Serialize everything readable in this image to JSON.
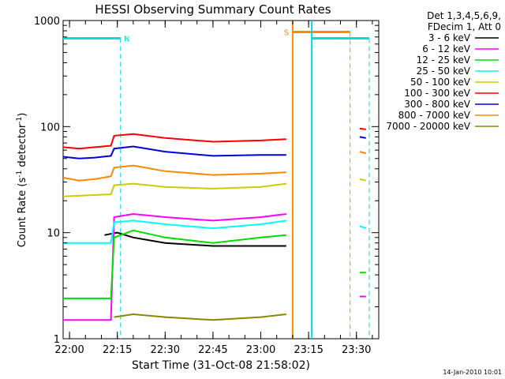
{
  "chart_data": {
    "type": "line",
    "title": "HESSI Observing Summary Count Rates",
    "xlabel": "Start Time (31-Oct-08 21:58:02)",
    "ylabel": "Count Rate (s",
    "ylabel_sup": "-1",
    "ylabel_rest": " detector",
    "ylabel_sup2": "-1",
    "ylabel_end": ")",
    "footer": "14-Jan-2010 10:01",
    "yscale": "log",
    "ylim": [
      1,
      1000
    ],
    "xlim": [
      "21:58",
      "23:37"
    ],
    "xticks": [
      "22:00",
      "22:15",
      "22:30",
      "22:45",
      "23:00",
      "23:15",
      "23:30"
    ],
    "yticks": [
      "1",
      "10",
      "100",
      "1000"
    ],
    "legend": {
      "placement": "right",
      "header": [
        "Det 1,3,4,5,6,9,",
        "FDecim 1, Att 0"
      ]
    },
    "series": [
      {
        "name": "3 - 6 keV",
        "color": "#000000",
        "points": [
          [
            "22:11",
            9.5
          ],
          [
            "22:15",
            10
          ],
          [
            "22:20",
            9
          ],
          [
            "22:30",
            8
          ],
          [
            "22:45",
            7.5
          ],
          [
            "23:00",
            7.5
          ],
          [
            "23:08",
            7.5
          ],
          [
            "23:31",
            null
          ],
          [
            "23:33",
            null
          ]
        ]
      },
      {
        "name": "6 - 12 keV",
        "color": "#ff00ff",
        "points": [
          [
            "21:58",
            1.5
          ],
          [
            "22:13",
            1.5
          ],
          [
            "22:14",
            14
          ],
          [
            "22:20",
            15
          ],
          [
            "22:30",
            14
          ],
          [
            "22:45",
            13
          ],
          [
            "23:00",
            14
          ],
          [
            "23:08",
            15
          ],
          [
            "23:31",
            2.5
          ],
          [
            "23:33",
            2.5
          ]
        ]
      },
      {
        "name": "12 - 25 keV",
        "color": "#00dd00",
        "points": [
          [
            "21:58",
            2.4
          ],
          [
            "22:13",
            2.4
          ],
          [
            "22:14",
            9
          ],
          [
            "22:20",
            10.5
          ],
          [
            "22:30",
            9
          ],
          [
            "22:45",
            8
          ],
          [
            "23:00",
            9
          ],
          [
            "23:08",
            9.5
          ],
          [
            "23:31",
            4.2
          ],
          [
            "23:33",
            4.2
          ]
        ]
      },
      {
        "name": "25 - 50 keV",
        "color": "#00ffff",
        "points": [
          [
            "21:58",
            8
          ],
          [
            "22:13",
            8
          ],
          [
            "22:14",
            12.5
          ],
          [
            "22:20",
            13
          ],
          [
            "22:30",
            12
          ],
          [
            "22:45",
            11
          ],
          [
            "23:00",
            12
          ],
          [
            "23:08",
            13
          ],
          [
            "23:31",
            11.5
          ],
          [
            "23:33",
            11
          ]
        ]
      },
      {
        "name": "50 - 100 keV",
        "color": "#cccc00",
        "points": [
          [
            "21:58",
            22
          ],
          [
            "22:13",
            23
          ],
          [
            "22:14",
            28
          ],
          [
            "22:20",
            29
          ],
          [
            "22:30",
            27
          ],
          [
            "22:45",
            26
          ],
          [
            "23:00",
            27
          ],
          [
            "23:08",
            29
          ],
          [
            "23:31",
            32
          ],
          [
            "23:33",
            31
          ]
        ]
      },
      {
        "name": "100 - 300 keV",
        "color": "#ff0000",
        "points": [
          [
            "21:58",
            64
          ],
          [
            "22:03",
            62
          ],
          [
            "22:08",
            64
          ],
          [
            "22:13",
            66
          ],
          [
            "22:14",
            82
          ],
          [
            "22:20",
            85
          ],
          [
            "22:30",
            78
          ],
          [
            "22:45",
            72
          ],
          [
            "23:00",
            74
          ],
          [
            "23:08",
            76
          ],
          [
            "23:31",
            96
          ],
          [
            "23:33",
            94
          ]
        ]
      },
      {
        "name": "300 - 800 keV",
        "color": "#0000dd",
        "points": [
          [
            "21:58",
            52
          ],
          [
            "22:03",
            50
          ],
          [
            "22:08",
            51
          ],
          [
            "22:13",
            53
          ],
          [
            "22:14",
            62
          ],
          [
            "22:20",
            65
          ],
          [
            "22:30",
            58
          ],
          [
            "22:45",
            53
          ],
          [
            "23:00",
            54
          ],
          [
            "23:08",
            54
          ],
          [
            "23:31",
            80
          ],
          [
            "23:33",
            78
          ]
        ]
      },
      {
        "name": "800 - 7000 keV",
        "color": "#ff8800",
        "points": [
          [
            "21:58",
            33
          ],
          [
            "22:03",
            31
          ],
          [
            "22:08",
            32
          ],
          [
            "22:13",
            34
          ],
          [
            "22:14",
            41
          ],
          [
            "22:20",
            43
          ],
          [
            "22:30",
            38
          ],
          [
            "22:45",
            35
          ],
          [
            "23:00",
            36
          ],
          [
            "23:08",
            37
          ],
          [
            "23:31",
            58
          ],
          [
            "23:33",
            56
          ]
        ]
      },
      {
        "name": "7000 - 20000 keV",
        "color": "#888800",
        "points": [
          [
            "22:14",
            1.6
          ],
          [
            "22:20",
            1.7
          ],
          [
            "22:30",
            1.6
          ],
          [
            "22:45",
            1.5
          ],
          [
            "23:00",
            1.6
          ],
          [
            "23:08",
            1.7
          ]
        ]
      }
    ],
    "annotations": [
      {
        "label": "N",
        "color": "#00dddd",
        "type": "night",
        "start": "21:58",
        "end": "22:16",
        "level": 680
      },
      {
        "label": "S",
        "color": "#ff8800",
        "type": "saa",
        "start": "23:10",
        "end": "23:28",
        "level": 780
      },
      {
        "label": "",
        "color": "#00dddd",
        "type": "night",
        "start": "23:16",
        "end": "23:34",
        "level": 680
      }
    ]
  }
}
